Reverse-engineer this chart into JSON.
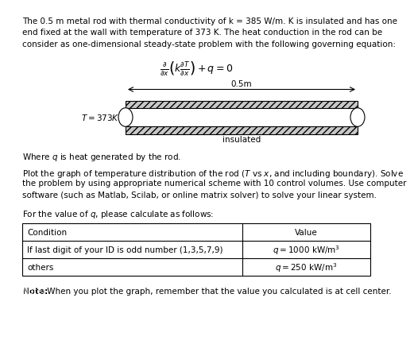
{
  "para1_line1": "The 0.5 m metal rod with thermal conductivity of k = 385 W/m. K is insulated and has one",
  "para1_line2": "end fixed at the wall with temperature of 373 K. The heat conduction in the rod can be",
  "para1_line3": "consider as one-dimensional steady-state problem with the following governing equation:",
  "equation": "$\\frac{\\partial}{\\partial x}\\left(k\\frac{\\partial T}{\\partial x}\\right) + q = 0$",
  "label_05m": "0.5m",
  "label_T": "$T = 373K$",
  "label_insulated": "insulated",
  "para2": "Where $q$ is heat generated by the rod.",
  "para3_line1": "Plot the graph of temperature distribution of the rod ($T$ vs $x$, and including boundary). Solve",
  "para3_line2": "the problem by using appropriate numerical scheme with 10 control volumes. Use computer",
  "para3_line3": "software (such as Matlab, Scilab, or online matrix solver) to solve your linear system.",
  "para4": "For the value of $q$, please calculate as follows:",
  "table_headers": [
    "Condition",
    "Value"
  ],
  "table_row1_left": "If last digit of your ID is odd number (1,3,5,7,9)",
  "table_row1_right": "$q = 1000$ kW/m$^3$",
  "table_row2_left": "others",
  "table_row2_right": "$q = 250$ kW/m$^3$",
  "note_bold": "Note:",
  "note_rest": " When you plot the graph, remember that the value you calculated is at cell center.",
  "hatch_color": "#c8c8c8",
  "rod_center_color": "white",
  "text_fontsize": 7.5,
  "eq_fontsize": 9
}
